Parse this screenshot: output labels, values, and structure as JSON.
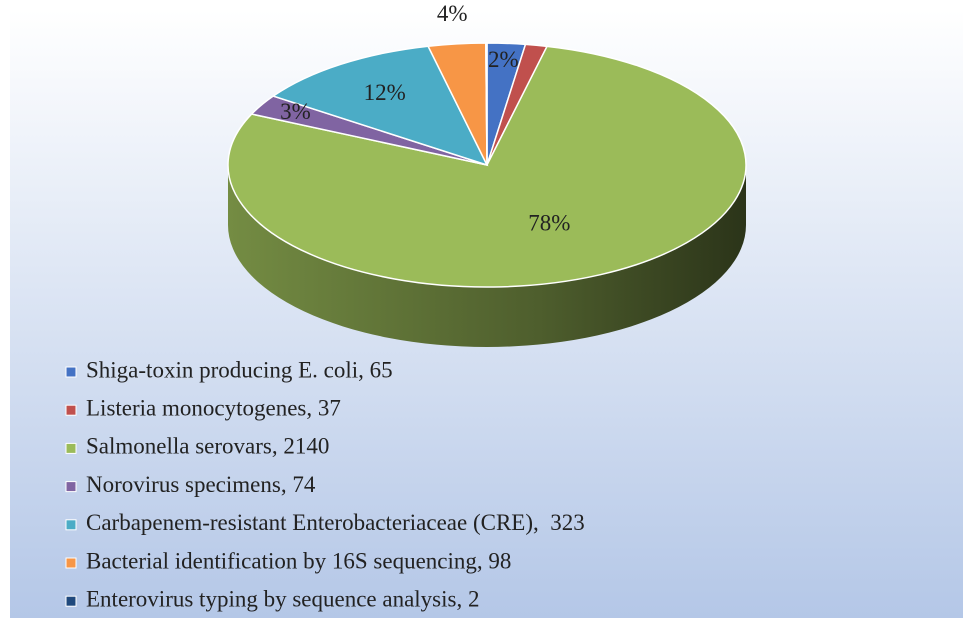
{
  "chart_data": {
    "type": "pie",
    "categories": [
      "Shiga-toxin producing E. coli, 65",
      "Listeria monocytogenes, 37",
      "Salmonella serovars, 2140",
      "Norovirus specimens, 74",
      "Carbapenem-resistant Enterobacteriaceae (CRE),  323",
      "Bacterial identification by 16S sequencing, 98",
      "Enterovirus typing by sequence analysis, 2"
    ],
    "values": [
      65,
      37,
      2140,
      74,
      323,
      98,
      2
    ],
    "value_labels": [
      "2%",
      null,
      "78%",
      "3%",
      "12%",
      "4%",
      null
    ],
    "colors": [
      "#4472c4",
      "#c0504d",
      "#9bbb59",
      "#8064a2",
      "#4bacc6",
      "#f79646",
      "#1f497d"
    ],
    "legend": "bottom-left"
  }
}
